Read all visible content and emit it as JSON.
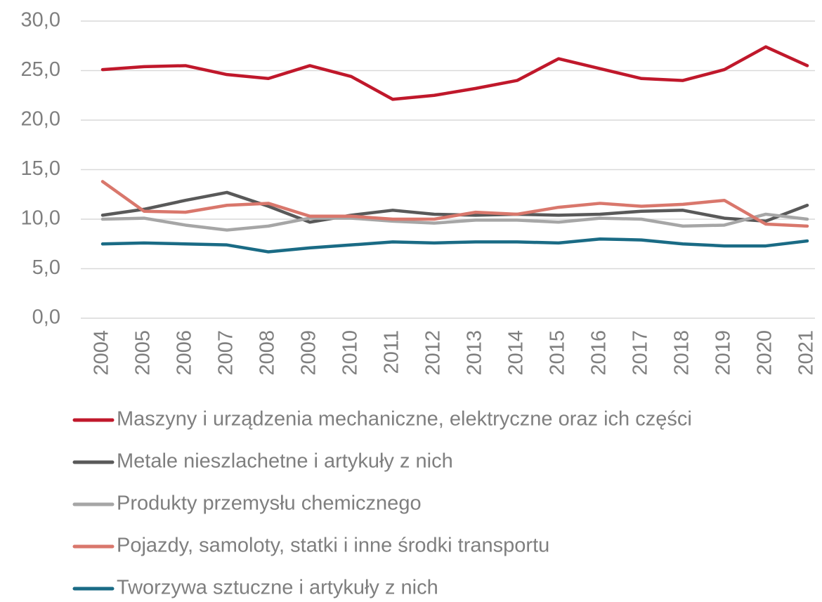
{
  "chart_data": {
    "type": "line",
    "categories": [
      "2004",
      "2005",
      "2006",
      "2007",
      "2008",
      "2009",
      "2010",
      "2011",
      "2012",
      "2013",
      "2014",
      "2015",
      "2016",
      "2017",
      "2018",
      "2019",
      "2020",
      "2021"
    ],
    "series": [
      {
        "name": "Maszyny i urządzenia mechaniczne, elektryczne oraz ich części",
        "color": "#c0182b",
        "values": [
          25.1,
          25.4,
          25.5,
          24.6,
          24.2,
          25.5,
          24.4,
          22.1,
          22.5,
          23.2,
          24.0,
          26.2,
          25.2,
          24.2,
          24.0,
          25.1,
          27.4,
          25.5
        ]
      },
      {
        "name": "Metale nieszlachetne i artykuły z nich",
        "color": "#595959",
        "values": [
          10.4,
          11.0,
          11.9,
          12.7,
          11.3,
          9.7,
          10.4,
          10.9,
          10.5,
          10.4,
          10.5,
          10.4,
          10.5,
          10.8,
          10.9,
          10.1,
          9.8,
          11.4
        ]
      },
      {
        "name": "Produkty przemysłu chemicznego",
        "color": "#a6a6a6",
        "values": [
          10.0,
          10.1,
          9.4,
          8.9,
          9.3,
          10.1,
          10.1,
          9.8,
          9.6,
          9.9,
          9.9,
          9.7,
          10.1,
          10.0,
          9.3,
          9.4,
          10.5,
          10.0
        ]
      },
      {
        "name": "Pojazdy, samoloty, statki i inne środki transportu",
        "color": "#d9776c",
        "values": [
          13.8,
          10.8,
          10.7,
          11.4,
          11.6,
          10.3,
          10.3,
          10.0,
          10.0,
          10.7,
          10.5,
          11.2,
          11.6,
          11.3,
          11.5,
          11.9,
          9.5,
          9.3
        ]
      },
      {
        "name": "Tworzywa sztuczne i artykuły z nich",
        "color": "#1a6b85",
        "values": [
          7.5,
          7.6,
          7.5,
          7.4,
          6.7,
          7.1,
          7.4,
          7.7,
          7.6,
          7.7,
          7.7,
          7.6,
          8.0,
          7.9,
          7.5,
          7.3,
          7.3,
          7.8
        ]
      }
    ],
    "ylim": [
      0,
      30
    ],
    "yticks": [
      {
        "value": 0,
        "label": "0,0"
      },
      {
        "value": 5,
        "label": "5,0"
      },
      {
        "value": 10,
        "label": "10,0"
      },
      {
        "value": 15,
        "label": "15,0"
      },
      {
        "value": 20,
        "label": "20,0"
      },
      {
        "value": 25,
        "label": "25,0"
      },
      {
        "value": 30,
        "label": "30,0"
      }
    ],
    "grid": true,
    "legend": "bottom"
  }
}
